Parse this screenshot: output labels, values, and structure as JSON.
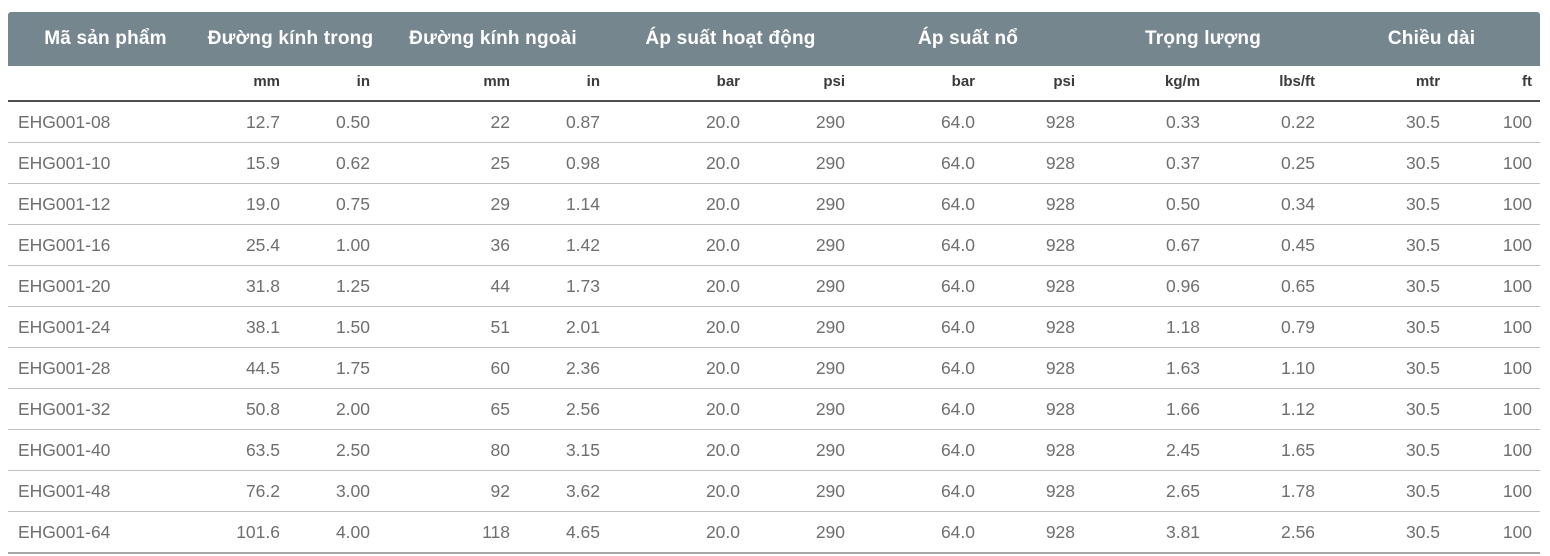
{
  "table": {
    "groups": [
      {
        "label": "Mã sản phẩm",
        "colspan": 1
      },
      {
        "label": "Đường kính trong",
        "colspan": 2
      },
      {
        "label": "Đường kính ngoài",
        "colspan": 2
      },
      {
        "label": "Áp suất hoạt động",
        "colspan": 2
      },
      {
        "label": "Áp suất nổ",
        "colspan": 2
      },
      {
        "label": "Trọng lượng",
        "colspan": 2
      },
      {
        "label": "Chiều dài",
        "colspan": 2
      }
    ],
    "units": [
      "",
      "mm",
      "in",
      "mm",
      "in",
      "bar",
      "psi",
      "bar",
      "psi",
      "kg/m",
      "lbs/ft",
      "mtr",
      "ft"
    ],
    "rows": [
      [
        "EHG001-08",
        "12.7",
        "0.50",
        "22",
        "0.87",
        "20.0",
        "290",
        "64.0",
        "928",
        "0.33",
        "0.22",
        "30.5",
        "100"
      ],
      [
        "EHG001-10",
        "15.9",
        "0.62",
        "25",
        "0.98",
        "20.0",
        "290",
        "64.0",
        "928",
        "0.37",
        "0.25",
        "30.5",
        "100"
      ],
      [
        "EHG001-12",
        "19.0",
        "0.75",
        "29",
        "1.14",
        "20.0",
        "290",
        "64.0",
        "928",
        "0.50",
        "0.34",
        "30.5",
        "100"
      ],
      [
        "EHG001-16",
        "25.4",
        "1.00",
        "36",
        "1.42",
        "20.0",
        "290",
        "64.0",
        "928",
        "0.67",
        "0.45",
        "30.5",
        "100"
      ],
      [
        "EHG001-20",
        "31.8",
        "1.25",
        "44",
        "1.73",
        "20.0",
        "290",
        "64.0",
        "928",
        "0.96",
        "0.65",
        "30.5",
        "100"
      ],
      [
        "EHG001-24",
        "38.1",
        "1.50",
        "51",
        "2.01",
        "20.0",
        "290",
        "64.0",
        "928",
        "1.18",
        "0.79",
        "30.5",
        "100"
      ],
      [
        "EHG001-28",
        "44.5",
        "1.75",
        "60",
        "2.36",
        "20.0",
        "290",
        "64.0",
        "928",
        "1.63",
        "1.10",
        "30.5",
        "100"
      ],
      [
        "EHG001-32",
        "50.8",
        "2.00",
        "65",
        "2.56",
        "20.0",
        "290",
        "64.0",
        "928",
        "1.66",
        "1.12",
        "30.5",
        "100"
      ],
      [
        "EHG001-40",
        "63.5",
        "2.50",
        "80",
        "3.15",
        "20.0",
        "290",
        "64.0",
        "928",
        "2.45",
        "1.65",
        "30.5",
        "100"
      ],
      [
        "EHG001-48",
        "76.2",
        "3.00",
        "92",
        "3.62",
        "20.0",
        "290",
        "64.0",
        "928",
        "2.65",
        "1.78",
        "30.5",
        "100"
      ],
      [
        "EHG001-64",
        "101.6",
        "4.00",
        "118",
        "4.65",
        "20.0",
        "290",
        "64.0",
        "928",
        "3.81",
        "2.56",
        "30.5",
        "100"
      ]
    ],
    "colors": {
      "header_bg": "#76868F",
      "header_text": "#FFFFFF",
      "units_text": "#3B3B3B",
      "body_text": "#6F6F6F",
      "row_divider": "#BFBFBF",
      "units_divider": "#4F4F4F",
      "bottom_divider": "#A6A6A6"
    }
  }
}
